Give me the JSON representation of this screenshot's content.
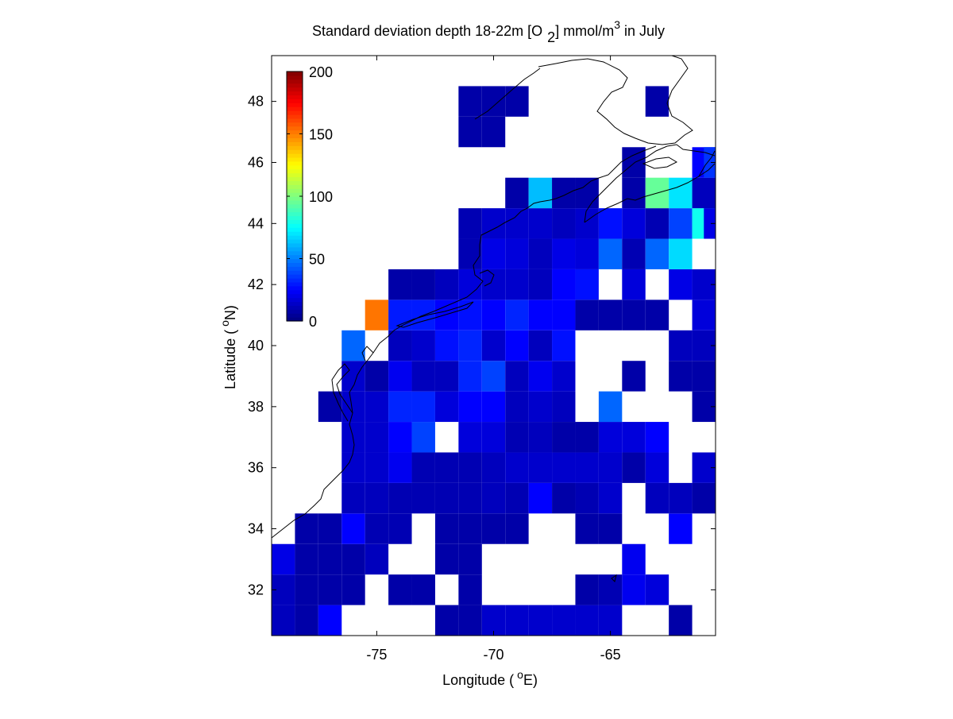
{
  "chart_data": {
    "type": "heatmap",
    "title": "Standard deviation depth 18-22m [O 2] mmol/m3 in July",
    "title_parts": {
      "main": "Standard deviation depth 18-22m [O",
      "subscript": "2",
      "after_subscript": "] mmol/m",
      "superscript": "3",
      "end": " in July"
    },
    "xlabel": "Longitude ( °E)",
    "xlabel_parts": {
      "pre": "Longitude (",
      "sup": "o",
      "post": "E)"
    },
    "ylabel": "Latitude ( °N)",
    "ylabel_parts": {
      "pre": "Latitude (",
      "sup": "o",
      "post": "N)"
    },
    "xlim": [
      -79.5,
      -60.5
    ],
    "ylim": [
      30.5,
      49.5
    ],
    "x_ticks": [
      -75,
      -70,
      -65
    ],
    "x_tick_labels": [
      "-75",
      "-70",
      "-65"
    ],
    "y_ticks": [
      32,
      34,
      36,
      38,
      40,
      42,
      44,
      46,
      48
    ],
    "y_tick_labels": [
      "32",
      "34",
      "36",
      "38",
      "40",
      "42",
      "44",
      "46",
      "48"
    ],
    "grid": false,
    "colormap": "jet",
    "colorbar": {
      "location": "upper-left inside axes",
      "range": [
        0,
        200
      ],
      "ticks": [
        0,
        50,
        100,
        150,
        200
      ],
      "tick_labels": [
        "0",
        "50",
        "100",
        "150",
        "200"
      ]
    },
    "cell_size_deg": 1,
    "grid_origin": {
      "lon": -79.5,
      "lat": 30.5
    },
    "cells": [
      {
        "lon": -79,
        "lat": 31,
        "v": 12
      },
      {
        "lon": -78,
        "lat": 31,
        "v": 8
      },
      {
        "lon": -77,
        "lat": 31,
        "v": 25
      },
      {
        "lon": -72,
        "lat": 31,
        "v": 8
      },
      {
        "lon": -71,
        "lat": 31,
        "v": 8
      },
      {
        "lon": -70,
        "lat": 31,
        "v": 15
      },
      {
        "lon": -69,
        "lat": 31,
        "v": 15
      },
      {
        "lon": -68,
        "lat": 31,
        "v": 15
      },
      {
        "lon": -67,
        "lat": 31,
        "v": 15
      },
      {
        "lon": -66,
        "lat": 31,
        "v": 15
      },
      {
        "lon": -65,
        "lat": 31,
        "v": 15
      },
      {
        "lon": -62,
        "lat": 31,
        "v": 8
      },
      {
        "lon": -79,
        "lat": 32,
        "v": 12
      },
      {
        "lon": -78,
        "lat": 32,
        "v": 8
      },
      {
        "lon": -77,
        "lat": 32,
        "v": 8
      },
      {
        "lon": -76,
        "lat": 32,
        "v": 8
      },
      {
        "lon": -74,
        "lat": 32,
        "v": 8
      },
      {
        "lon": -73,
        "lat": 32,
        "v": 8
      },
      {
        "lon": -71,
        "lat": 32,
        "v": 8
      },
      {
        "lon": -66,
        "lat": 32,
        "v": 8
      },
      {
        "lon": -65,
        "lat": 32,
        "v": 10
      },
      {
        "lon": -64,
        "lat": 32,
        "v": 22
      },
      {
        "lon": -63,
        "lat": 32,
        "v": 18
      },
      {
        "lon": -79,
        "lat": 33,
        "v": 20
      },
      {
        "lon": -78,
        "lat": 33,
        "v": 8
      },
      {
        "lon": -77,
        "lat": 33,
        "v": 8
      },
      {
        "lon": -76,
        "lat": 33,
        "v": 8
      },
      {
        "lon": -75,
        "lat": 33,
        "v": 12
      },
      {
        "lon": -72,
        "lat": 33,
        "v": 8
      },
      {
        "lon": -71,
        "lat": 33,
        "v": 8
      },
      {
        "lon": -64,
        "lat": 33,
        "v": 22
      },
      {
        "lon": -78,
        "lat": 34,
        "v": 8
      },
      {
        "lon": -77,
        "lat": 34,
        "v": 8
      },
      {
        "lon": -76,
        "lat": 34,
        "v": 25
      },
      {
        "lon": -75,
        "lat": 34,
        "v": 10
      },
      {
        "lon": -74,
        "lat": 34,
        "v": 10
      },
      {
        "lon": -72,
        "lat": 34,
        "v": 8
      },
      {
        "lon": -71,
        "lat": 34,
        "v": 8
      },
      {
        "lon": -70,
        "lat": 34,
        "v": 8
      },
      {
        "lon": -69,
        "lat": 34,
        "v": 8
      },
      {
        "lon": -66,
        "lat": 34,
        "v": 8
      },
      {
        "lon": -65,
        "lat": 34,
        "v": 8
      },
      {
        "lon": -62,
        "lat": 34,
        "v": 25
      },
      {
        "lon": -76,
        "lat": 35,
        "v": 12
      },
      {
        "lon": -75,
        "lat": 35,
        "v": 12
      },
      {
        "lon": -74,
        "lat": 35,
        "v": 10
      },
      {
        "lon": -73,
        "lat": 35,
        "v": 10
      },
      {
        "lon": -72,
        "lat": 35,
        "v": 10
      },
      {
        "lon": -71,
        "lat": 35,
        "v": 10
      },
      {
        "lon": -70,
        "lat": 35,
        "v": 12
      },
      {
        "lon": -69,
        "lat": 35,
        "v": 10
      },
      {
        "lon": -68,
        "lat": 35,
        "v": 25
      },
      {
        "lon": -67,
        "lat": 35,
        "v": 8
      },
      {
        "lon": -66,
        "lat": 35,
        "v": 10
      },
      {
        "lon": -65,
        "lat": 35,
        "v": 15
      },
      {
        "lon": -63,
        "lat": 35,
        "v": 12
      },
      {
        "lon": -62,
        "lat": 35,
        "v": 12
      },
      {
        "lon": -61,
        "lat": 35,
        "v": 8
      },
      {
        "lon": -76,
        "lat": 36,
        "v": 15
      },
      {
        "lon": -75,
        "lat": 36,
        "v": 15
      },
      {
        "lon": -74,
        "lat": 36,
        "v": 22
      },
      {
        "lon": -73,
        "lat": 36,
        "v": 10
      },
      {
        "lon": -72,
        "lat": 36,
        "v": 10
      },
      {
        "lon": -71,
        "lat": 36,
        "v": 10
      },
      {
        "lon": -70,
        "lat": 36,
        "v": 12
      },
      {
        "lon": -69,
        "lat": 36,
        "v": 15
      },
      {
        "lon": -68,
        "lat": 36,
        "v": 15
      },
      {
        "lon": -67,
        "lat": 36,
        "v": 15
      },
      {
        "lon": -66,
        "lat": 36,
        "v": 15
      },
      {
        "lon": -65,
        "lat": 36,
        "v": 15
      },
      {
        "lon": -64,
        "lat": 36,
        "v": 8
      },
      {
        "lon": -63,
        "lat": 36,
        "v": 18
      },
      {
        "lon": -61,
        "lat": 36,
        "v": 15
      },
      {
        "lon": -76,
        "lat": 37,
        "v": 15
      },
      {
        "lon": -75,
        "lat": 37,
        "v": 15
      },
      {
        "lon": -74,
        "lat": 37,
        "v": 25
      },
      {
        "lon": -73,
        "lat": 37,
        "v": 38
      },
      {
        "lon": -71,
        "lat": 37,
        "v": 18
      },
      {
        "lon": -70,
        "lat": 37,
        "v": 18
      },
      {
        "lon": -69,
        "lat": 37,
        "v": 10
      },
      {
        "lon": -68,
        "lat": 37,
        "v": 12
      },
      {
        "lon": -67,
        "lat": 37,
        "v": 8
      },
      {
        "lon": -66,
        "lat": 37,
        "v": 8
      },
      {
        "lon": -65,
        "lat": 37,
        "v": 18
      },
      {
        "lon": -64,
        "lat": 37,
        "v": 18
      },
      {
        "lon": -63,
        "lat": 37,
        "v": 25
      },
      {
        "lon": -77,
        "lat": 38,
        "v": 8
      },
      {
        "lon": -76,
        "lat": 38,
        "v": 15
      },
      {
        "lon": -75,
        "lat": 38,
        "v": 15
      },
      {
        "lon": -74,
        "lat": 38,
        "v": 32
      },
      {
        "lon": -73,
        "lat": 38,
        "v": 32
      },
      {
        "lon": -72,
        "lat": 38,
        "v": 18
      },
      {
        "lon": -71,
        "lat": 38,
        "v": 25
      },
      {
        "lon": -70,
        "lat": 38,
        "v": 25
      },
      {
        "lon": -69,
        "lat": 38,
        "v": 12
      },
      {
        "lon": -68,
        "lat": 38,
        "v": 15
      },
      {
        "lon": -67,
        "lat": 38,
        "v": 12
      },
      {
        "lon": -65,
        "lat": 38,
        "v": 45
      },
      {
        "lon": -61,
        "lat": 38,
        "v": 8
      },
      {
        "lon": -76,
        "lat": 39,
        "v": 15
      },
      {
        "lon": -75,
        "lat": 39,
        "v": 8
      },
      {
        "lon": -74,
        "lat": 39,
        "v": 22
      },
      {
        "lon": -73,
        "lat": 39,
        "v": 12
      },
      {
        "lon": -72,
        "lat": 39,
        "v": 12
      },
      {
        "lon": -71,
        "lat": 39,
        "v": 32
      },
      {
        "lon": -70,
        "lat": 39,
        "v": 38
      },
      {
        "lon": -69,
        "lat": 39,
        "v": 12
      },
      {
        "lon": -68,
        "lat": 39,
        "v": 22
      },
      {
        "lon": -67,
        "lat": 39,
        "v": 15
      },
      {
        "lon": -64,
        "lat": 39,
        "v": 8
      },
      {
        "lon": -62,
        "lat": 39,
        "v": 8
      },
      {
        "lon": -61,
        "lat": 39,
        "v": 8
      },
      {
        "lon": -76,
        "lat": 40,
        "v": 45
      },
      {
        "lon": -74,
        "lat": 40,
        "v": 12
      },
      {
        "lon": -73,
        "lat": 40,
        "v": 15
      },
      {
        "lon": -72,
        "lat": 40,
        "v": 28
      },
      {
        "lon": -71,
        "lat": 40,
        "v": 32
      },
      {
        "lon": -70,
        "lat": 40,
        "v": 15
      },
      {
        "lon": -69,
        "lat": 40,
        "v": 25
      },
      {
        "lon": -68,
        "lat": 40,
        "v": 12
      },
      {
        "lon": -67,
        "lat": 40,
        "v": 28
      },
      {
        "lon": -62,
        "lat": 40,
        "v": 12
      },
      {
        "lon": -61,
        "lat": 40,
        "v": 12
      },
      {
        "lon": -75,
        "lat": 41,
        "v": 152
      },
      {
        "lon": -74,
        "lat": 41,
        "v": 30
      },
      {
        "lon": -73,
        "lat": 41,
        "v": 30
      },
      {
        "lon": -72,
        "lat": 41,
        "v": 25
      },
      {
        "lon": -71,
        "lat": 41,
        "v": 28
      },
      {
        "lon": -70,
        "lat": 41,
        "v": 25
      },
      {
        "lon": -69,
        "lat": 41,
        "v": 32
      },
      {
        "lon": -68,
        "lat": 41,
        "v": 25
      },
      {
        "lon": -67,
        "lat": 41,
        "v": 25
      },
      {
        "lon": -66,
        "lat": 41,
        "v": 8
      },
      {
        "lon": -65,
        "lat": 41,
        "v": 8
      },
      {
        "lon": -64,
        "lat": 41,
        "v": 8
      },
      {
        "lon": -63,
        "lat": 41,
        "v": 8
      },
      {
        "lon": -61,
        "lat": 41,
        "v": 18
      },
      {
        "lon": -74,
        "lat": 42,
        "v": 8
      },
      {
        "lon": -73,
        "lat": 42,
        "v": 8
      },
      {
        "lon": -72,
        "lat": 42,
        "v": 12
      },
      {
        "lon": -71,
        "lat": 42,
        "v": 18
      },
      {
        "lon": -70,
        "lat": 42,
        "v": 15
      },
      {
        "lon": -69,
        "lat": 42,
        "v": 15
      },
      {
        "lon": -68,
        "lat": 42,
        "v": 12
      },
      {
        "lon": -67,
        "lat": 42,
        "v": 25
      },
      {
        "lon": -66,
        "lat": 42,
        "v": 28
      },
      {
        "lon": -64,
        "lat": 42,
        "v": 18
      },
      {
        "lon": -62,
        "lat": 42,
        "v": 20
      },
      {
        "lon": -61,
        "lat": 42,
        "v": 15
      },
      {
        "lon": -71,
        "lat": 43,
        "v": 10
      },
      {
        "lon": -70,
        "lat": 43,
        "v": 20
      },
      {
        "lon": -69,
        "lat": 43,
        "v": 18
      },
      {
        "lon": -68,
        "lat": 43,
        "v": 12
      },
      {
        "lon": -67,
        "lat": 43,
        "v": 20
      },
      {
        "lon": -66,
        "lat": 43,
        "v": 18
      },
      {
        "lon": -65,
        "lat": 43,
        "v": 45
      },
      {
        "lon": -64,
        "lat": 43,
        "v": 10
      },
      {
        "lon": -63,
        "lat": 43,
        "v": 45
      },
      {
        "lon": -62,
        "lat": 43,
        "v": 68
      },
      {
        "lon": -71,
        "lat": 44,
        "v": 10
      },
      {
        "lon": -70,
        "lat": 44,
        "v": 15
      },
      {
        "lon": -69,
        "lat": 44,
        "v": 15
      },
      {
        "lon": -68,
        "lat": 44,
        "v": 15
      },
      {
        "lon": -67,
        "lat": 44,
        "v": 12
      },
      {
        "lon": -66,
        "lat": 44,
        "v": 15
      },
      {
        "lon": -65,
        "lat": 44,
        "v": 28
      },
      {
        "lon": -64,
        "lat": 44,
        "v": 18
      },
      {
        "lon": -63,
        "lat": 44,
        "v": 10
      },
      {
        "lon": -62,
        "lat": 44,
        "v": 38
      },
      {
        "lon": -61,
        "lat": 44,
        "v": 78
      },
      {
        "lon": -60.5,
        "lat": 44,
        "v": 20
      },
      {
        "lon": -69,
        "lat": 45,
        "v": 8
      },
      {
        "lon": -68,
        "lat": 45,
        "v": 62
      },
      {
        "lon": -67,
        "lat": 45,
        "v": 8
      },
      {
        "lon": -66,
        "lat": 45,
        "v": 8
      },
      {
        "lon": -64,
        "lat": 45,
        "v": 8
      },
      {
        "lon": -63,
        "lat": 45,
        "v": 95
      },
      {
        "lon": -62,
        "lat": 45,
        "v": 70
      },
      {
        "lon": -61,
        "lat": 45,
        "v": 12
      },
      {
        "lon": -64,
        "lat": 46,
        "v": 8
      },
      {
        "lon": -61,
        "lat": 46,
        "v": 25
      },
      {
        "lon": -60.5,
        "lat": 46,
        "v": 35
      },
      {
        "lon": -71,
        "lat": 47,
        "v": 8
      },
      {
        "lon": -70,
        "lat": 47,
        "v": 8
      },
      {
        "lon": -71,
        "lat": 48,
        "v": 8
      },
      {
        "lon": -70,
        "lat": 48,
        "v": 8
      },
      {
        "lon": -69,
        "lat": 48,
        "v": 8
      },
      {
        "lon": -63,
        "lat": 48,
        "v": 8
      }
    ]
  }
}
